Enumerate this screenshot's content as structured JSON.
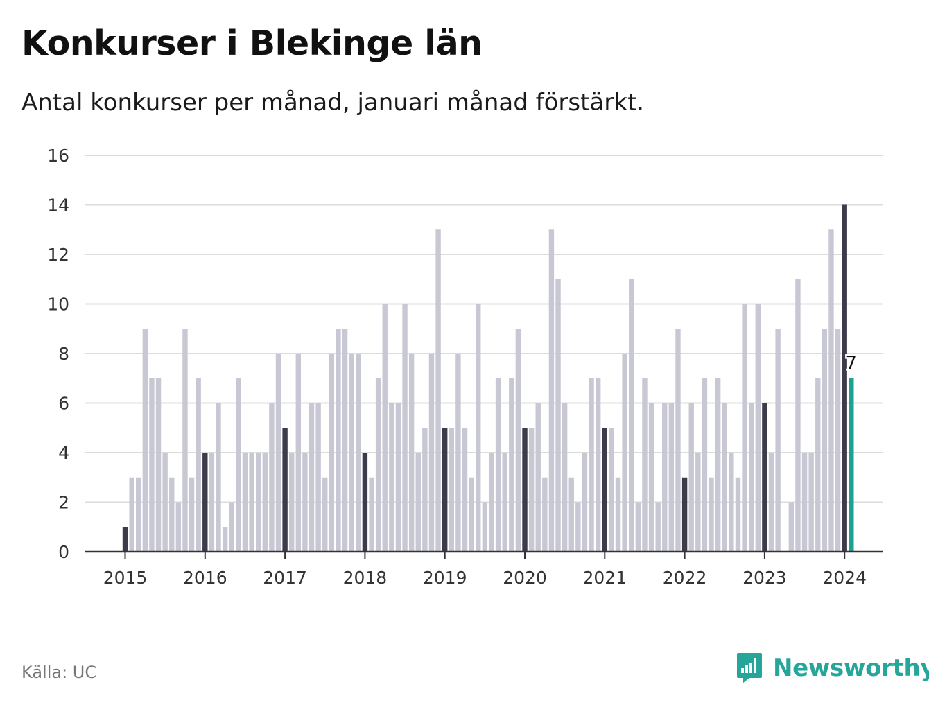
{
  "header": {
    "title": "Konkurser i Blekinge län",
    "subtitle": "Antal konkurser per månad, januari månad förstärkt."
  },
  "footer": {
    "source": "Källa: UC",
    "brand": "Newsworthy",
    "brand_icon": "newsworthy-logo-icon"
  },
  "colors": {
    "bar": "#c8c8d4",
    "january": "#3d3b4a",
    "latest": "#1aa393",
    "grid": "#dcdcdc",
    "axis": "#333333",
    "brand": "#26a69a"
  },
  "chart_data": {
    "type": "bar",
    "title": "Konkurser i Blekinge län",
    "subtitle": "Antal konkurser per månad, januari månad förstärkt.",
    "start_year": 2015,
    "start_month": 1,
    "x_ticks": [
      "2015",
      "2016",
      "2017",
      "2018",
      "2019",
      "2020",
      "2021",
      "2022",
      "2023",
      "2024"
    ],
    "y_ticks": [
      0,
      2,
      4,
      6,
      8,
      10,
      12,
      14,
      16
    ],
    "ylim": [
      0,
      16
    ],
    "grid": true,
    "highlight_january": true,
    "latest_label": "7",
    "values": [
      1,
      3,
      3,
      9,
      7,
      7,
      4,
      3,
      2,
      9,
      3,
      7,
      4,
      4,
      6,
      1,
      2,
      7,
      4,
      4,
      4,
      4,
      6,
      8,
      5,
      4,
      8,
      4,
      6,
      6,
      3,
      8,
      9,
      9,
      8,
      8,
      4,
      3,
      7,
      10,
      6,
      6,
      10,
      8,
      4,
      5,
      8,
      13,
      5,
      5,
      8,
      5,
      3,
      10,
      2,
      4,
      7,
      4,
      7,
      9,
      5,
      5,
      6,
      3,
      13,
      11,
      6,
      3,
      2,
      4,
      7,
      7,
      5,
      5,
      3,
      8,
      11,
      2,
      7,
      6,
      2,
      6,
      6,
      9,
      3,
      6,
      4,
      7,
      3,
      7,
      6,
      4,
      3,
      10,
      6,
      10,
      6,
      4,
      9,
      0,
      2,
      11,
      4,
      4,
      7,
      9,
      13,
      9,
      14,
      7
    ]
  }
}
